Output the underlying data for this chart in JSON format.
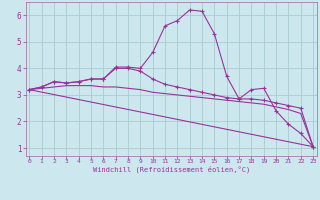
{
  "xlabel": "Windchill (Refroidissement éolien,°C)",
  "background_color": "#cce8ee",
  "grid_color": "#aacccc",
  "line_color": "#993399",
  "spine_color": "#9966aa",
  "x_ticks": [
    0,
    1,
    2,
    3,
    4,
    5,
    6,
    7,
    8,
    9,
    10,
    11,
    12,
    13,
    14,
    15,
    16,
    17,
    18,
    19,
    20,
    21,
    22,
    23
  ],
  "y_ticks": [
    1,
    2,
    3,
    4,
    5,
    6
  ],
  "xlim": [
    -0.3,
    23.3
  ],
  "ylim": [
    0.7,
    6.5
  ],
  "lines": [
    {
      "x": [
        0,
        1,
        2,
        3,
        4,
        5,
        6,
        7,
        8,
        9,
        10,
        11,
        12,
        13,
        14,
        15,
        16,
        17,
        18,
        19,
        20,
        21,
        22,
        23
      ],
      "y": [
        3.2,
        3.3,
        3.5,
        3.45,
        3.5,
        3.6,
        3.6,
        4.05,
        4.05,
        4.0,
        4.6,
        5.6,
        5.8,
        6.2,
        6.15,
        5.3,
        3.7,
        2.85,
        3.2,
        3.25,
        2.4,
        1.9,
        1.55,
        1.05
      ],
      "marker": true
    },
    {
      "x": [
        0,
        1,
        2,
        3,
        4,
        5,
        6,
        7,
        8,
        9,
        10,
        11,
        12,
        13,
        14,
        15,
        16,
        17,
        18,
        19,
        20,
        21,
        22,
        23
      ],
      "y": [
        3.2,
        3.3,
        3.5,
        3.45,
        3.5,
        3.6,
        3.6,
        4.0,
        4.0,
        3.9,
        3.6,
        3.4,
        3.3,
        3.2,
        3.1,
        3.0,
        2.9,
        2.85,
        2.85,
        2.8,
        2.7,
        2.6,
        2.5,
        1.05
      ],
      "marker": true
    },
    {
      "x": [
        0,
        1,
        2,
        3,
        4,
        5,
        6,
        7,
        8,
        9,
        10,
        11,
        12,
        13,
        14,
        15,
        16,
        17,
        18,
        19,
        20,
        21,
        22,
        23
      ],
      "y": [
        3.2,
        3.25,
        3.3,
        3.35,
        3.35,
        3.35,
        3.3,
        3.3,
        3.25,
        3.2,
        3.1,
        3.05,
        3.0,
        2.95,
        2.9,
        2.85,
        2.8,
        2.75,
        2.7,
        2.65,
        2.55,
        2.45,
        2.3,
        1.05
      ],
      "marker": false
    },
    {
      "x": [
        0,
        23
      ],
      "y": [
        3.2,
        1.05
      ],
      "marker": false
    }
  ]
}
